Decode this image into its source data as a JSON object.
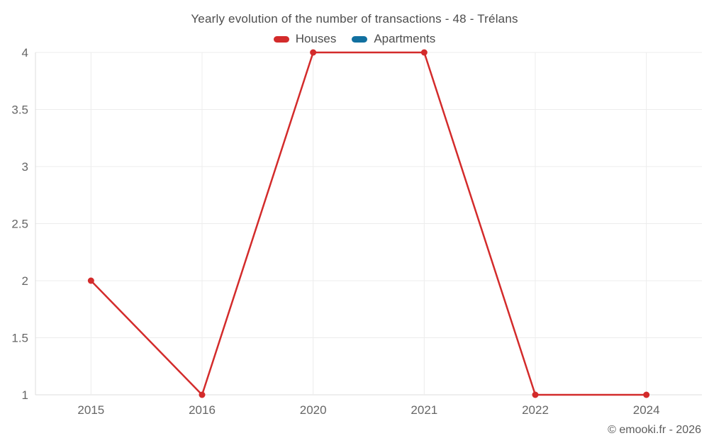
{
  "title": "Yearly evolution of the number of transactions - 48 - Trélans",
  "footer": {
    "copyright": "© emooki.fr - 2026"
  },
  "chart_data": {
    "type": "line",
    "title": "Yearly evolution of the number of transactions - 48 - Trélans",
    "categories": [
      "2015",
      "2016",
      "2020",
      "2021",
      "2022",
      "2024"
    ],
    "series": [
      {
        "name": "Houses",
        "color": "#d32b2b",
        "values": [
          2,
          1,
          4,
          4,
          1,
          1
        ]
      },
      {
        "name": "Apartments",
        "color": "#1170a0",
        "values": []
      }
    ],
    "xlabel": "",
    "ylabel": "",
    "ylim": [
      1,
      4
    ],
    "yticks": [
      1,
      1.5,
      2,
      2.5,
      3,
      3.5,
      4
    ],
    "ytick_labels": [
      "1",
      "1.5",
      "2",
      "2.5",
      "3",
      "3.5",
      "4"
    ],
    "grid": true,
    "legend_position": "top",
    "colors": {
      "grid": "#ececec",
      "axis": "#dddddd",
      "tick_text": "#666666",
      "title_text": "#4d4d4d"
    }
  }
}
